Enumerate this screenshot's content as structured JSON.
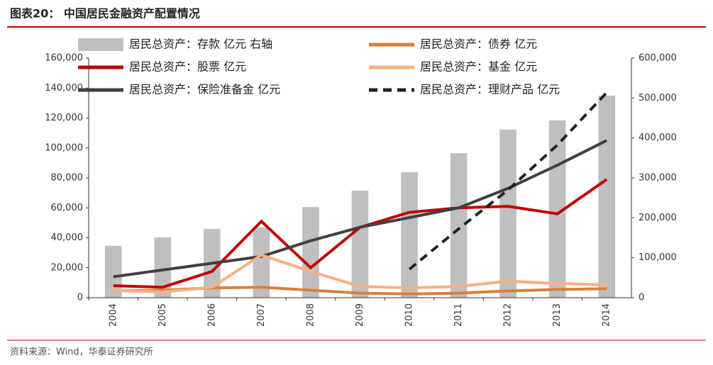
{
  "chart_data": {
    "type": "combo",
    "title": "图表20：  中国居民金融资产配置情况",
    "source": "资料来源：Wind，华泰证券研究所",
    "categories": [
      "2004",
      "2005",
      "2006",
      "2007",
      "2008",
      "2009",
      "2010",
      "2011",
      "2012",
      "2013",
      "2014"
    ],
    "series": [
      {
        "name": "居民总资产：存款 亿元 右轴",
        "type": "bar",
        "axis": "y2",
        "color": "#bfbfbf",
        "values": [
          130000,
          151000,
          172000,
          176000,
          227000,
          268000,
          314000,
          362000,
          421000,
          444000,
          506000
        ]
      },
      {
        "name": "居民总资产：股票 亿元",
        "type": "line",
        "color": "#c00000",
        "values": [
          8000,
          7000,
          17500,
          51000,
          20000,
          47000,
          57000,
          60000,
          61000,
          56000,
          79000
        ]
      },
      {
        "name": "居民总资产：保险准备金 亿元",
        "type": "line",
        "color": "#404040",
        "values": [
          14000,
          18500,
          23000,
          27500,
          38000,
          47000,
          53500,
          60000,
          73000,
          88500,
          105000
        ]
      },
      {
        "name": "居民总资产：债券 亿元",
        "type": "line",
        "color": "#d9803a",
        "values": [
          4500,
          5000,
          6500,
          7000,
          5000,
          3000,
          2500,
          3000,
          4500,
          5500,
          6000
        ]
      },
      {
        "name": "居民总资产：基金 亿元",
        "type": "line",
        "color": "#f4b183",
        "values": [
          4800,
          3800,
          7000,
          28500,
          17500,
          7500,
          6500,
          7500,
          11000,
          9500,
          8500
        ]
      },
      {
        "name": "居民总资产：理财产品 亿元",
        "type": "line",
        "color": "#222222",
        "line_style": "dashed",
        "values": [
          null,
          null,
          null,
          null,
          null,
          null,
          19000,
          46000,
          72000,
          102000,
          137000
        ]
      }
    ],
    "ylim": [
      0,
      160000
    ],
    "yticks": [
      0,
      {
        "value": 20000,
        "label": "20,000"
      },
      {
        "value": 40000,
        "label": "40,000"
      },
      {
        "value": 60000,
        "label": "60,000"
      },
      {
        "value": 80000,
        "label": "80,000"
      },
      {
        "value": 100000,
        "label": "100,000"
      },
      {
        "value": 120000,
        "label": "120,000"
      },
      {
        "value": 140000,
        "label": "140,000"
      },
      {
        "value": 160000,
        "label": "160,000"
      }
    ],
    "y2lim": [
      0,
      600000
    ],
    "y2ticks": [
      0,
      {
        "value": 100000,
        "label": "100,000"
      },
      {
        "value": 200000,
        "label": "200,000"
      },
      {
        "value": 300000,
        "label": "300,000"
      },
      {
        "value": 400000,
        "label": "400,000"
      },
      {
        "value": 500000,
        "label": "500,000"
      },
      {
        "value": 600000,
        "label": "600,000"
      }
    ]
  }
}
